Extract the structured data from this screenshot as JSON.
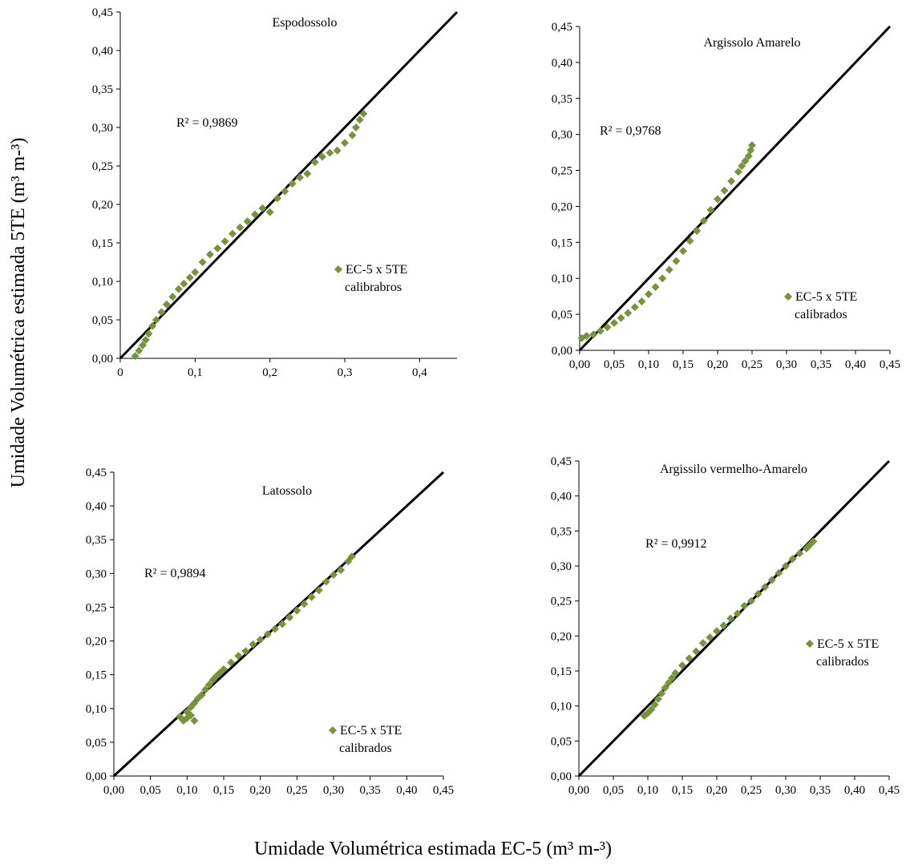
{
  "y_axis_label": "Umidade Volumétrica estimada 5TE (m³ m-³)",
  "x_axis_label": "Umidade Volumétrica estimada EC-5 (m³ m-³)",
  "colors": {
    "points": "#77933C",
    "line": "#000000",
    "axis": "#000000"
  },
  "chart_data": [
    {
      "type": "scatter",
      "title": "Espodossolo",
      "r2": "R² = 0,9869",
      "legend": [
        "EC-5 x 5TE",
        "calibrabros"
      ],
      "xlim": [
        0,
        0.45
      ],
      "ylim": [
        0,
        0.45
      ],
      "x_ticks": [
        "0",
        "0,1",
        "0,2",
        "0,3",
        "0,4"
      ],
      "x_tick_values": [
        0,
        0.1,
        0.2,
        0.3,
        0.4
      ],
      "y_ticks": [
        "0,00",
        "0,05",
        "0,10",
        "0,15",
        "0,20",
        "0,25",
        "0,30",
        "0,35",
        "0,40",
        "0,45"
      ],
      "line": [
        [
          0,
          0
        ],
        [
          0.45,
          0.45
        ]
      ],
      "points": [
        [
          0.02,
          0.003
        ],
        [
          0.025,
          0.01
        ],
        [
          0.03,
          0.017
        ],
        [
          0.034,
          0.024
        ],
        [
          0.038,
          0.032
        ],
        [
          0.043,
          0.042
        ],
        [
          0.048,
          0.05
        ],
        [
          0.055,
          0.06
        ],
        [
          0.062,
          0.07
        ],
        [
          0.07,
          0.08
        ],
        [
          0.078,
          0.09
        ],
        [
          0.085,
          0.097
        ],
        [
          0.093,
          0.105
        ],
        [
          0.1,
          0.112
        ],
        [
          0.11,
          0.125
        ],
        [
          0.12,
          0.135
        ],
        [
          0.13,
          0.143
        ],
        [
          0.14,
          0.152
        ],
        [
          0.15,
          0.162
        ],
        [
          0.16,
          0.17
        ],
        [
          0.17,
          0.178
        ],
        [
          0.18,
          0.187
        ],
        [
          0.19,
          0.195
        ],
        [
          0.2,
          0.19
        ],
        [
          0.21,
          0.208
        ],
        [
          0.22,
          0.217
        ],
        [
          0.23,
          0.227
        ],
        [
          0.24,
          0.235
        ],
        [
          0.25,
          0.24
        ],
        [
          0.26,
          0.255
        ],
        [
          0.27,
          0.262
        ],
        [
          0.28,
          0.267
        ],
        [
          0.29,
          0.27
        ],
        [
          0.3,
          0.28
        ],
        [
          0.31,
          0.29
        ],
        [
          0.315,
          0.3
        ],
        [
          0.32,
          0.31
        ],
        [
          0.325,
          0.318
        ]
      ]
    },
    {
      "type": "scatter",
      "title": "Argissolo Amarelo",
      "r2": "R² = 0,9768",
      "legend": [
        "EC-5 x 5TE",
        "calibrados"
      ],
      "xlim": [
        0,
        0.45
      ],
      "ylim": [
        0,
        0.45
      ],
      "x_ticks": [
        "0,00",
        "0,05",
        "0,10",
        "0,15",
        "0,20",
        "0,25",
        "0,30",
        "0,35",
        "0,40",
        "0,45"
      ],
      "x_tick_values": [
        0,
        0.05,
        0.1,
        0.15,
        0.2,
        0.25,
        0.3,
        0.35,
        0.4,
        0.45
      ],
      "y_ticks": [
        "0,00",
        "0,05",
        "0,10",
        "0,15",
        "0,20",
        "0,25",
        "0,30",
        "0,35",
        "0,40",
        "0,45"
      ],
      "line": [
        [
          0,
          0
        ],
        [
          0.45,
          0.45
        ]
      ],
      "points": [
        [
          0.003,
          0.017
        ],
        [
          0.01,
          0.02
        ],
        [
          0.02,
          0.022
        ],
        [
          0.03,
          0.027
        ],
        [
          0.04,
          0.032
        ],
        [
          0.05,
          0.038
        ],
        [
          0.06,
          0.045
        ],
        [
          0.07,
          0.052
        ],
        [
          0.08,
          0.06
        ],
        [
          0.09,
          0.068
        ],
        [
          0.1,
          0.078
        ],
        [
          0.11,
          0.088
        ],
        [
          0.12,
          0.1
        ],
        [
          0.13,
          0.112
        ],
        [
          0.14,
          0.124
        ],
        [
          0.15,
          0.138
        ],
        [
          0.16,
          0.152
        ],
        [
          0.17,
          0.166
        ],
        [
          0.18,
          0.18
        ],
        [
          0.19,
          0.195
        ],
        [
          0.2,
          0.21
        ],
        [
          0.21,
          0.222
        ],
        [
          0.22,
          0.235
        ],
        [
          0.23,
          0.248
        ],
        [
          0.235,
          0.256
        ],
        [
          0.24,
          0.263
        ],
        [
          0.245,
          0.27
        ],
        [
          0.248,
          0.278
        ],
        [
          0.25,
          0.285
        ]
      ]
    },
    {
      "type": "scatter",
      "title": "Latossolo",
      "r2": "R² = 0,9894",
      "legend": [
        "EC-5 x 5TE",
        "calibrados"
      ],
      "xlim": [
        0,
        0.45
      ],
      "ylim": [
        0,
        0.45
      ],
      "x_ticks": [
        "0,00",
        "0,05",
        "0,10",
        "0,15",
        "0,20",
        "0,25",
        "0,30",
        "0,35",
        "0,40",
        "0,45"
      ],
      "x_tick_values": [
        0,
        0.05,
        0.1,
        0.15,
        0.2,
        0.25,
        0.3,
        0.35,
        0.4,
        0.45
      ],
      "y_ticks": [
        "0,00",
        "0,05",
        "0,10",
        "0,15",
        "0,20",
        "0,25",
        "0,30",
        "0,35",
        "0,40",
        "0,45"
      ],
      "line": [
        [
          0,
          0
        ],
        [
          0.45,
          0.45
        ]
      ],
      "points": [
        [
          0.09,
          0.088
        ],
        [
          0.095,
          0.082
        ],
        [
          0.1,
          0.086
        ],
        [
          0.105,
          0.09
        ],
        [
          0.11,
          0.082
        ],
        [
          0.1,
          0.095
        ],
        [
          0.105,
          0.102
        ],
        [
          0.11,
          0.108
        ],
        [
          0.115,
          0.115
        ],
        [
          0.12,
          0.12
        ],
        [
          0.125,
          0.128
        ],
        [
          0.13,
          0.135
        ],
        [
          0.135,
          0.142
        ],
        [
          0.14,
          0.148
        ],
        [
          0.145,
          0.153
        ],
        [
          0.15,
          0.158
        ],
        [
          0.16,
          0.168
        ],
        [
          0.17,
          0.178
        ],
        [
          0.18,
          0.185
        ],
        [
          0.19,
          0.195
        ],
        [
          0.2,
          0.202
        ],
        [
          0.21,
          0.21
        ],
        [
          0.22,
          0.218
        ],
        [
          0.23,
          0.225
        ],
        [
          0.24,
          0.235
        ],
        [
          0.25,
          0.245
        ],
        [
          0.26,
          0.255
        ],
        [
          0.27,
          0.265
        ],
        [
          0.28,
          0.275
        ],
        [
          0.29,
          0.288
        ],
        [
          0.3,
          0.298
        ],
        [
          0.31,
          0.305
        ],
        [
          0.32,
          0.318
        ],
        [
          0.325,
          0.325
        ]
      ]
    },
    {
      "type": "scatter",
      "title": "Argissilo vermelho-Amarelo",
      "r2": "R² = 0,9912",
      "legend": [
        "EC-5 x 5TE",
        "calibrados"
      ],
      "xlim": [
        0,
        0.45
      ],
      "ylim": [
        0,
        0.45
      ],
      "x_ticks": [
        "0,00",
        "0,05",
        "0,10",
        "0,15",
        "0,20",
        "0,25",
        "0,30",
        "0,35",
        "0,40",
        "0,45"
      ],
      "x_tick_values": [
        0,
        0.05,
        0.1,
        0.15,
        0.2,
        0.25,
        0.3,
        0.35,
        0.4,
        0.45
      ],
      "y_ticks": [
        "0,00",
        "0,05",
        "0,10",
        "0,15",
        "0,20",
        "0,25",
        "0,30",
        "0,35",
        "0,40",
        "0,45"
      ],
      "line": [
        [
          0,
          0
        ],
        [
          0.45,
          0.45
        ]
      ],
      "points": [
        [
          0.095,
          0.086
        ],
        [
          0.1,
          0.09
        ],
        [
          0.105,
          0.095
        ],
        [
          0.11,
          0.102
        ],
        [
          0.115,
          0.11
        ],
        [
          0.12,
          0.118
        ],
        [
          0.125,
          0.126
        ],
        [
          0.13,
          0.133
        ],
        [
          0.135,
          0.14
        ],
        [
          0.14,
          0.147
        ],
        [
          0.15,
          0.158
        ],
        [
          0.16,
          0.168
        ],
        [
          0.17,
          0.178
        ],
        [
          0.18,
          0.19
        ],
        [
          0.19,
          0.198
        ],
        [
          0.2,
          0.207
        ],
        [
          0.21,
          0.215
        ],
        [
          0.22,
          0.225
        ],
        [
          0.23,
          0.232
        ],
        [
          0.24,
          0.243
        ],
        [
          0.25,
          0.25
        ],
        [
          0.26,
          0.26
        ],
        [
          0.27,
          0.27
        ],
        [
          0.28,
          0.28
        ],
        [
          0.29,
          0.29
        ],
        [
          0.3,
          0.3
        ],
        [
          0.31,
          0.31
        ],
        [
          0.32,
          0.318
        ],
        [
          0.33,
          0.325
        ],
        [
          0.335,
          0.33
        ],
        [
          0.34,
          0.335
        ]
      ]
    }
  ]
}
